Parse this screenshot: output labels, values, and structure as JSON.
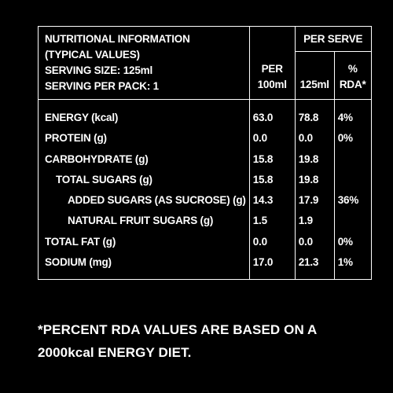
{
  "header": {
    "title": "NUTRITIONAL INFORMATION",
    "subtitle": "(TYPICAL VALUES)",
    "serving_size": "SERVING SIZE: 125ml",
    "serving_per_pack": "SERVING PER PACK: 1",
    "per_serve": "PER SERVE",
    "col_per100_line1": "PER",
    "col_per100_line2": "100ml",
    "col_per125": "125ml",
    "col_rda_line1": "%",
    "col_rda_line2": "RDA*"
  },
  "rows": [
    {
      "name": "ENERGY (kcal)",
      "per100": "63.0",
      "per125": "78.8",
      "rda": "4%"
    },
    {
      "name": "PROTEIN (g)",
      "per100": "0.0",
      "per125": "0.0",
      "rda": "0%"
    },
    {
      "name": "CARBOHYDRATE (g)",
      "per100": "15.8",
      "per125": "19.8",
      "rda": ""
    },
    {
      "name": "TOTAL SUGARS (g)",
      "per100": "15.8",
      "per125": "19.8",
      "rda": ""
    },
    {
      "name": "ADDED SUGARS (AS SUCROSE) (g)",
      "per100": "14.3",
      "per125": "17.9",
      "rda": "36%"
    },
    {
      "name": "NATURAL FRUIT SUGARS (g)",
      "per100": "1.5",
      "per125": "1.9",
      "rda": ""
    },
    {
      "name": "TOTAL FAT (g)",
      "per100": "0.0",
      "per125": "0.0",
      "rda": "0%"
    },
    {
      "name": "SODIUM (mg)",
      "per100": "17.0",
      "per125": "21.3",
      "rda": "1%"
    }
  ],
  "footnote": {
    "line1": "*PERCENT RDA VALUES ARE BASED ON A",
    "line2": "2000kcal ENERGY DIET."
  }
}
